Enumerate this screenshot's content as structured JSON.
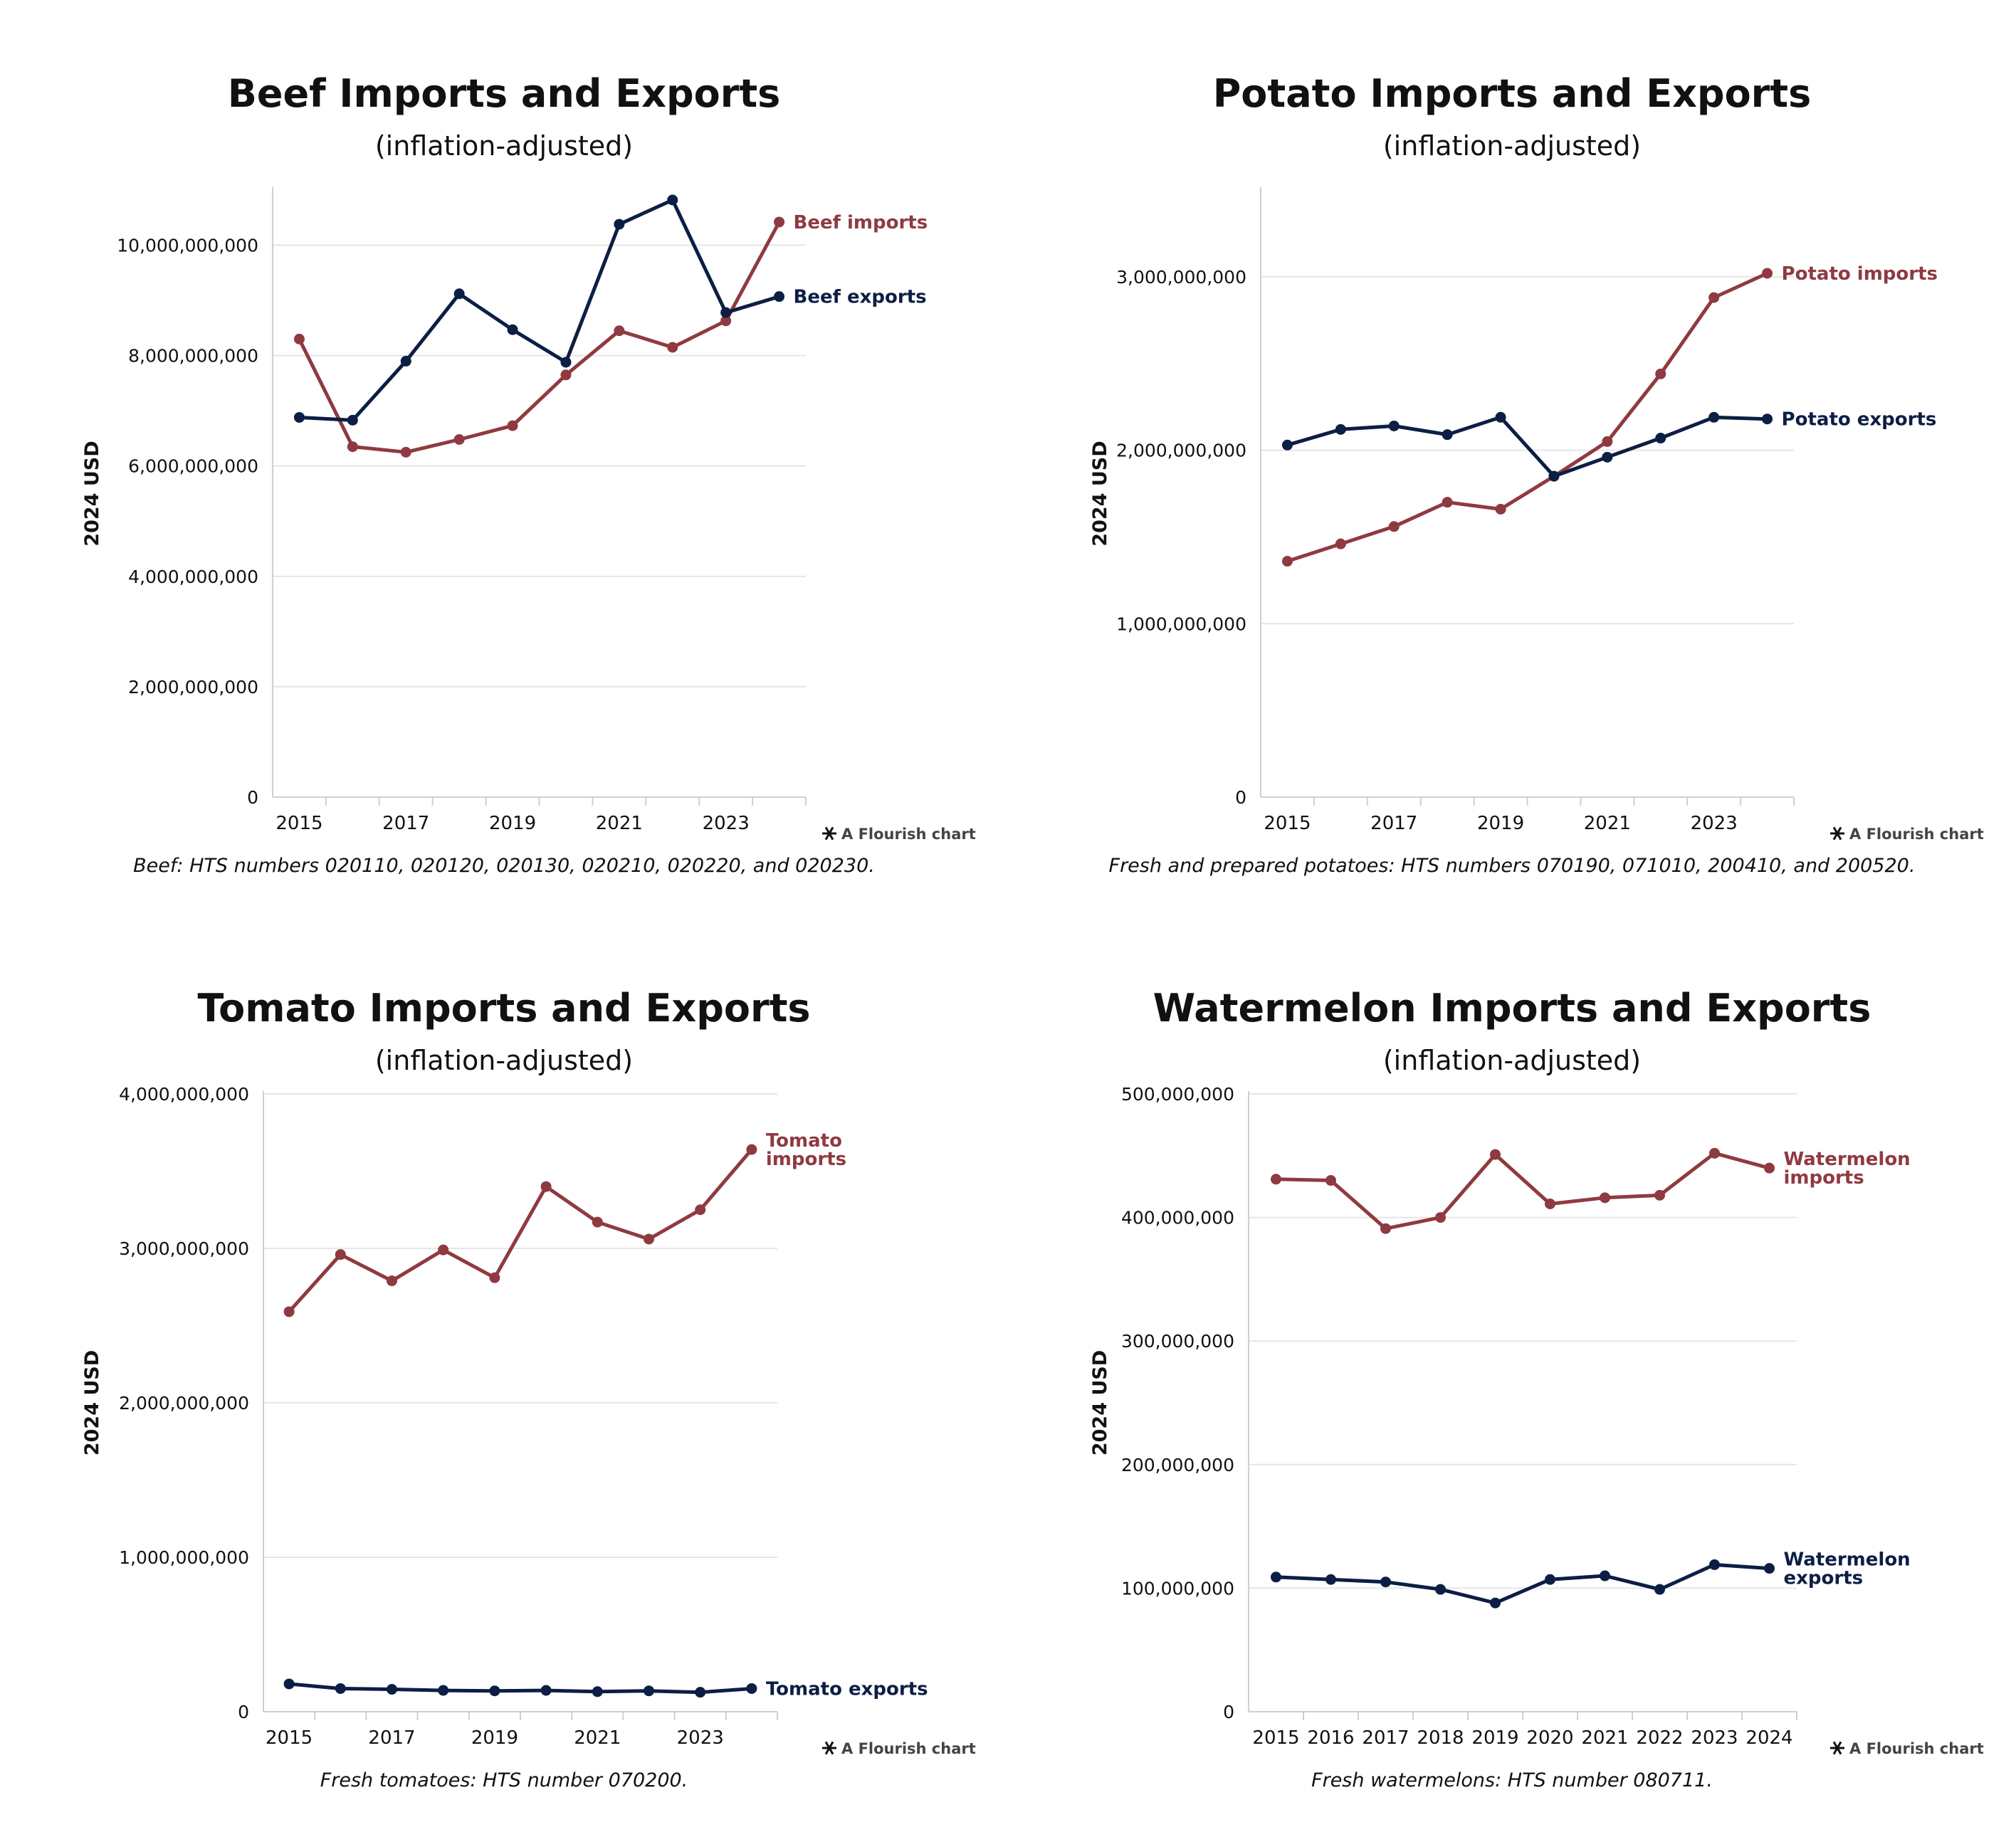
{
  "colors": {
    "imports": "#8f3a40",
    "exports": "#0c1e44",
    "grid": "#e6e6e6",
    "axis": "#cfcfcf",
    "text": "#111111"
  },
  "credit": "A Flourish chart",
  "chart_data": [
    {
      "type": "line",
      "title": "Beef Imports and Exports",
      "subtitle": "(inflation-adjusted)",
      "ylabel": "2024 USD",
      "xlabel": "",
      "note": "Beef: HTS numbers 020110, 020120, 020130, 020210, 020220, and 020230.",
      "x": [
        2015,
        2016,
        2017,
        2018,
        2019,
        2020,
        2021,
        2022,
        2023,
        2024
      ],
      "x_tick_labels": [
        "2015",
        "2017",
        "2019",
        "2021",
        "2023"
      ],
      "ylim": [
        0,
        11000000000
      ],
      "y_ticks": [
        0,
        2000000000,
        4000000000,
        6000000000,
        8000000000,
        10000000000
      ],
      "y_tick_labels": [
        "0",
        "2,000,000,000",
        "4,000,000,000",
        "6,000,000,000",
        "8,000,000,000",
        "10,000,000,000"
      ],
      "grid": true,
      "series": [
        {
          "name": "Beef imports",
          "label_lines": [
            "Beef imports"
          ],
          "color": "#8f3a40",
          "values": [
            8300000000,
            6350000000,
            6250000000,
            6480000000,
            6730000000,
            7650000000,
            8450000000,
            8150000000,
            8630000000,
            10420000000
          ]
        },
        {
          "name": "Beef exports",
          "label_lines": [
            "Beef exports"
          ],
          "color": "#0c1e44",
          "values": [
            6880000000,
            6830000000,
            7900000000,
            9120000000,
            8470000000,
            7880000000,
            10380000000,
            10820000000,
            8780000000,
            9070000000
          ]
        }
      ]
    },
    {
      "type": "line",
      "title": "Potato Imports and Exports",
      "subtitle": "(inflation-adjusted)",
      "ylabel": "2024 USD",
      "xlabel": "",
      "note": "Fresh and prepared potatoes: HTS numbers 070190, 071010, 200410, and 200520.",
      "x": [
        2015,
        2016,
        2017,
        2018,
        2019,
        2020,
        2021,
        2022,
        2023,
        2024
      ],
      "x_tick_labels": [
        "2015",
        "2017",
        "2019",
        "2021",
        "2023"
      ],
      "ylim": [
        0,
        3500000000
      ],
      "y_ticks": [
        0,
        1000000000,
        2000000000,
        3000000000
      ],
      "y_tick_labels": [
        "0",
        "1,000,000,000",
        "2,000,000,000",
        "3,000,000,000"
      ],
      "grid": true,
      "series": [
        {
          "name": "Potato imports",
          "label_lines": [
            "Potato imports"
          ],
          "color": "#8f3a40",
          "values": [
            1360000000,
            1460000000,
            1560000000,
            1700000000,
            1660000000,
            1850000000,
            2050000000,
            2440000000,
            2880000000,
            3020000000
          ]
        },
        {
          "name": "Potato exports",
          "label_lines": [
            "Potato exports"
          ],
          "color": "#0c1e44",
          "values": [
            2030000000,
            2120000000,
            2140000000,
            2090000000,
            2190000000,
            1850000000,
            1960000000,
            2070000000,
            2190000000,
            2180000000
          ]
        }
      ]
    },
    {
      "type": "line",
      "title": "Tomato Imports and Exports",
      "subtitle": "(inflation-adjusted)",
      "ylabel": "2024 USD",
      "xlabel": "",
      "note": "Fresh tomatoes: HTS number 070200.",
      "x": [
        2015,
        2016,
        2017,
        2018,
        2019,
        2020,
        2021,
        2022,
        2023,
        2024
      ],
      "x_tick_labels": [
        "2015",
        "2017",
        "2019",
        "2021",
        "2023"
      ],
      "ylim": [
        0,
        4000000000
      ],
      "y_ticks": [
        0,
        1000000000,
        2000000000,
        3000000000,
        4000000000
      ],
      "y_tick_labels": [
        "0",
        "1,000,000,000",
        "2,000,000,000",
        "3,000,000,000",
        "4,000,000,000"
      ],
      "grid": true,
      "series": [
        {
          "name": "Tomato imports",
          "label_lines": [
            "Tomato",
            "imports"
          ],
          "color": "#8f3a40",
          "values": [
            2590000000,
            2960000000,
            2790000000,
            2990000000,
            2810000000,
            3400000000,
            3170000000,
            3060000000,
            3250000000,
            3640000000
          ]
        },
        {
          "name": "Tomato exports",
          "label_lines": [
            "Tomato exports"
          ],
          "color": "#0c1e44",
          "values": [
            180000000,
            150000000,
            145000000,
            138000000,
            135000000,
            138000000,
            130000000,
            135000000,
            126000000,
            150000000
          ]
        }
      ]
    },
    {
      "type": "line",
      "title": "Watermelon Imports and Exports",
      "subtitle": "(inflation-adjusted)",
      "ylabel": "2024 USD",
      "xlabel": "",
      "note": "Fresh watermelons: HTS number 080711.",
      "x": [
        2015,
        2016,
        2017,
        2018,
        2019,
        2020,
        2021,
        2022,
        2023,
        2024
      ],
      "x_tick_labels": [
        "2015",
        "2016",
        "2017",
        "2018",
        "2019",
        "2020",
        "2021",
        "2022",
        "2023",
        "2024"
      ],
      "ylim": [
        0,
        500000000
      ],
      "y_ticks": [
        0,
        100000000,
        200000000,
        300000000,
        400000000,
        500000000
      ],
      "y_tick_labels": [
        "0",
        "100,000,000",
        "200,000,000",
        "300,000,000",
        "400,000,000",
        "500,000,000"
      ],
      "grid": true,
      "series": [
        {
          "name": "Watermelon imports",
          "label_lines": [
            "Watermelon",
            "imports"
          ],
          "color": "#8f3a40",
          "values": [
            431000000,
            430000000,
            391000000,
            400000000,
            451000000,
            411000000,
            416000000,
            418000000,
            452000000,
            440000000
          ]
        },
        {
          "name": "Watermelon exports",
          "label_lines": [
            "Watermelon",
            "exports"
          ],
          "color": "#0c1e44",
          "values": [
            109000000,
            107000000,
            105000000,
            99000000,
            88000000,
            107000000,
            110000000,
            99000000,
            119000000,
            116000000
          ]
        }
      ]
    }
  ]
}
